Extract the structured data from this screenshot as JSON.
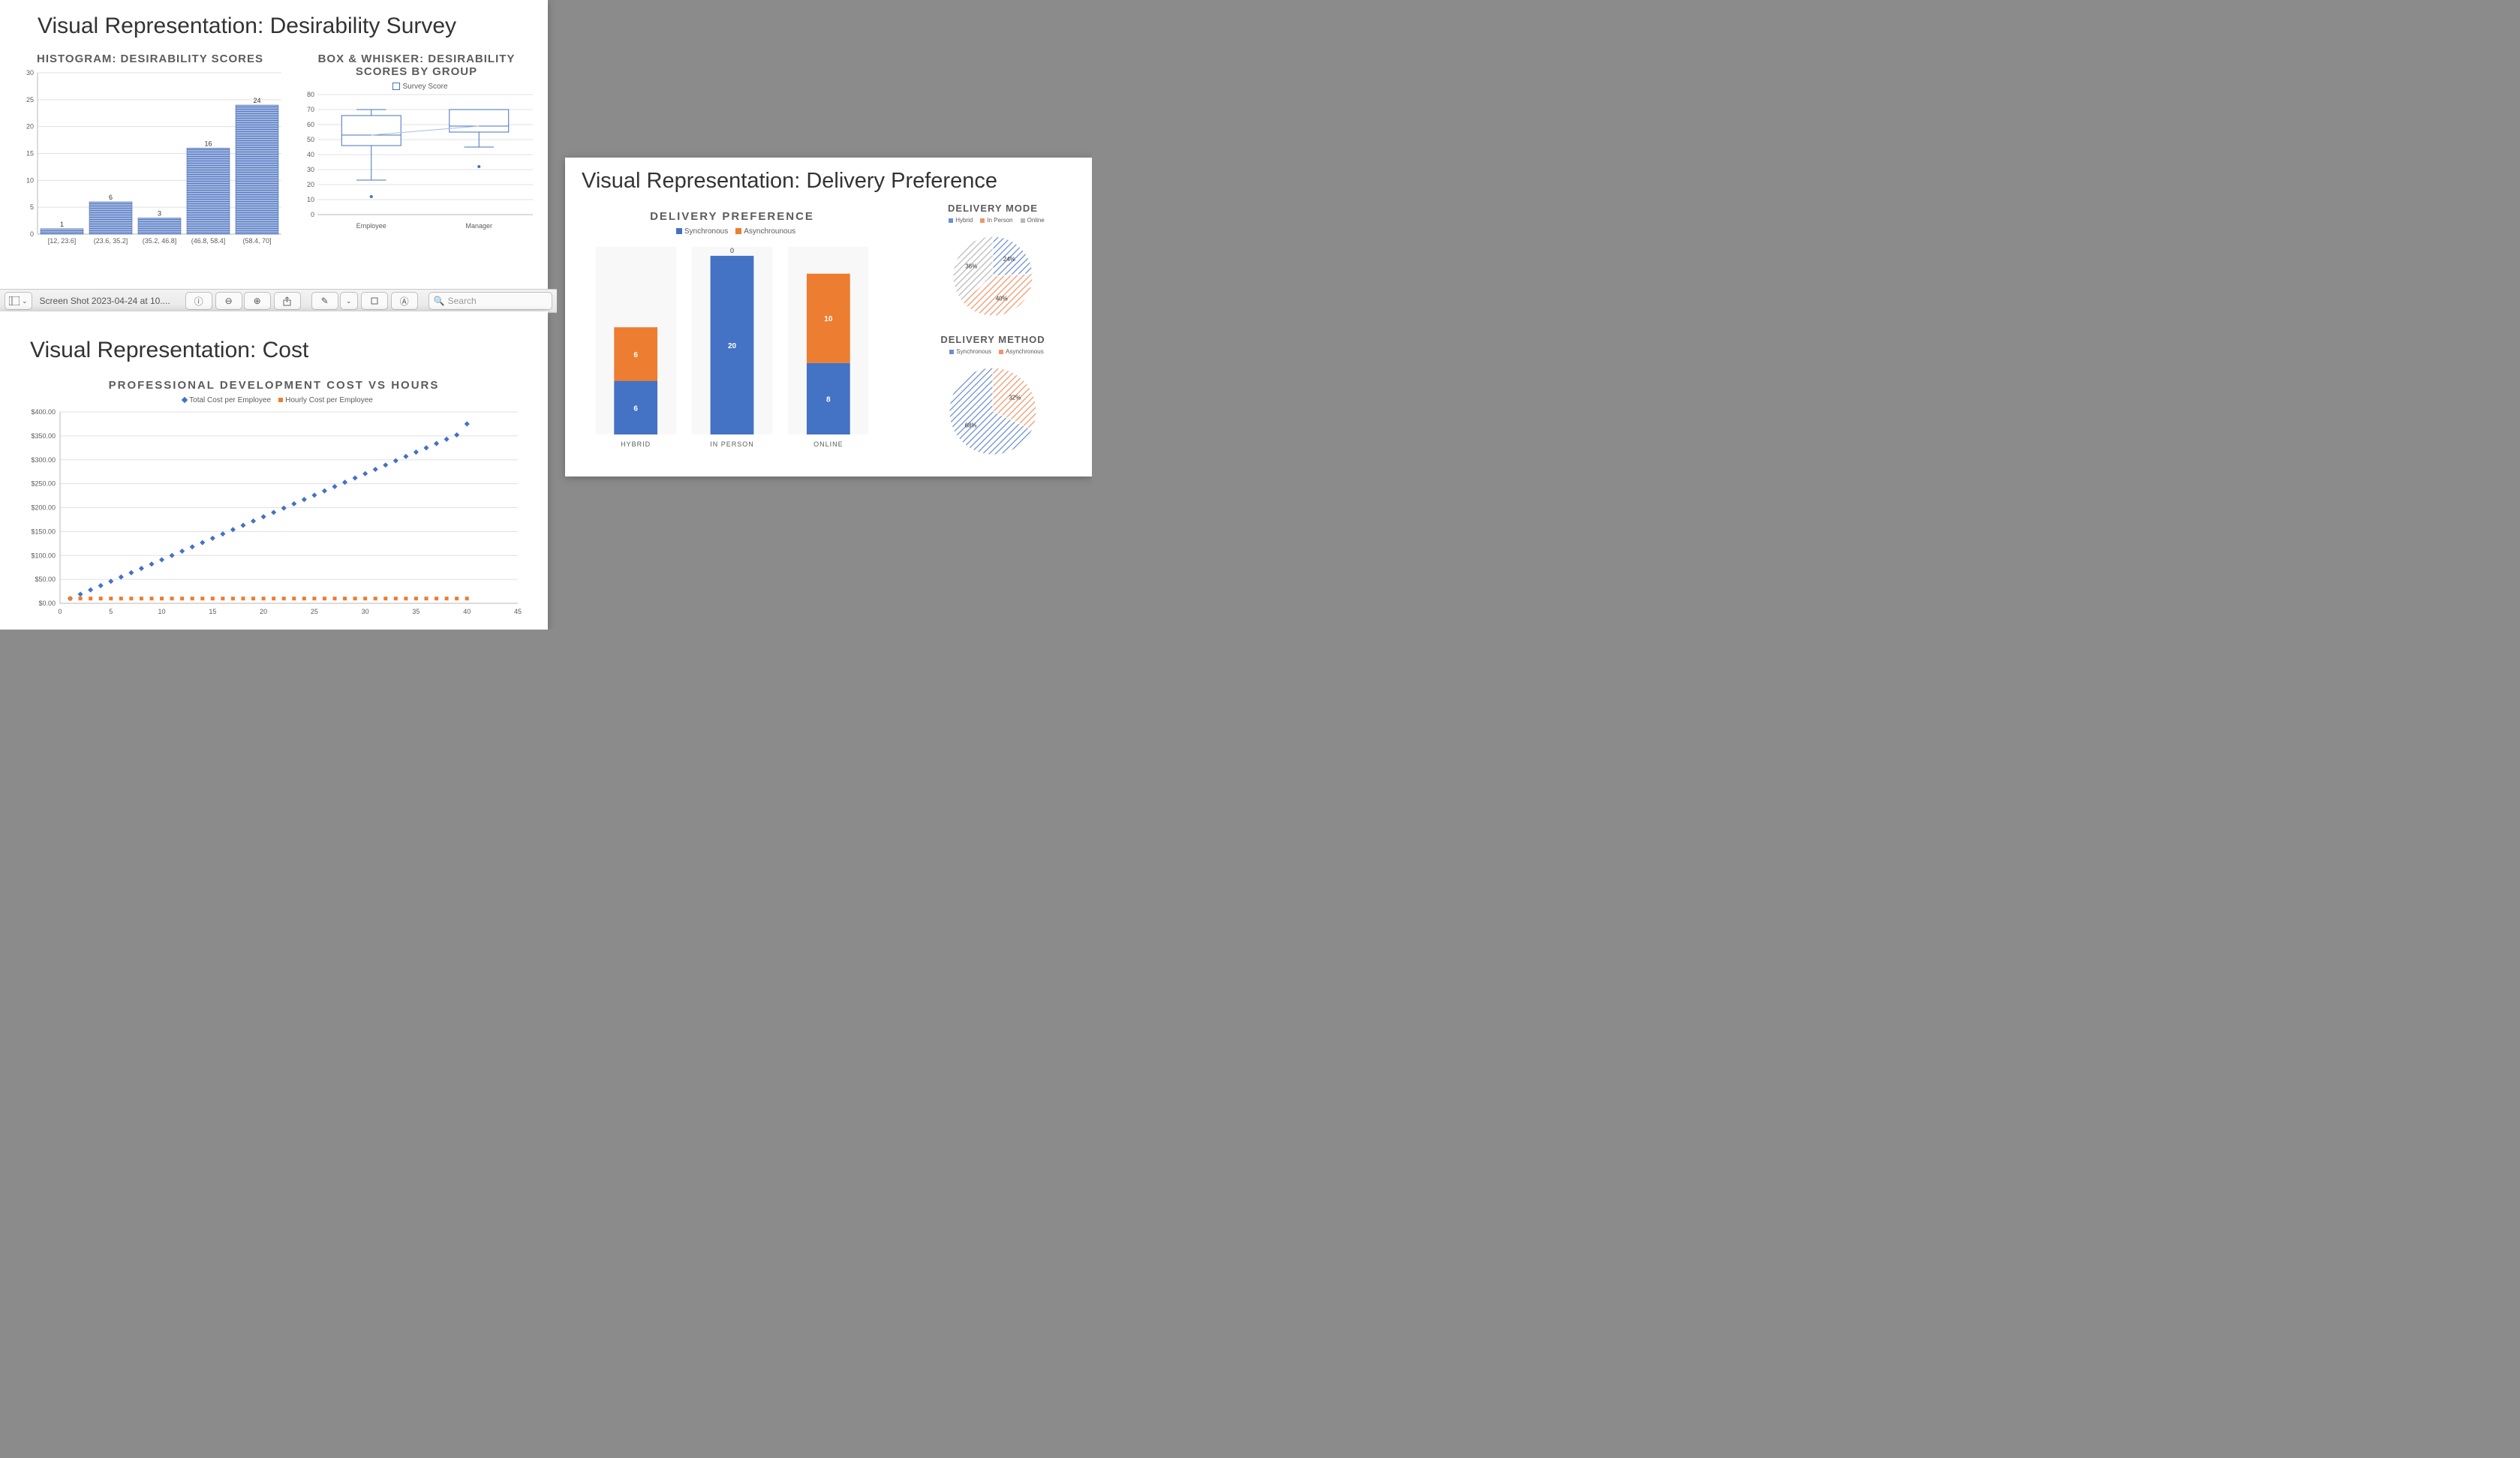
{
  "background_color": "#8b8b8b",
  "slide_bg": "#ffffff",
  "colors": {
    "blue": "#4472c4",
    "orange": "#ed7d31",
    "gray_text": "#5c5c5c",
    "grid": "#e0e0e0",
    "axis": "#b8b8b8",
    "hatch_blue": "#6a8fd0",
    "hatch_orange": "#f0976a",
    "hatch_gray": "#b8b8b8"
  },
  "slide_desirability": {
    "title": "Visual Representation: Desirability Survey",
    "histogram": {
      "type": "histogram",
      "title": "HISTOGRAM: DESIRABILITY SCORES",
      "bins": [
        "[12, 23.6]",
        "(23.6, 35.2]",
        "(35.2, 46.8]",
        "(46.8, 58.4]",
        "(58.4, 70]"
      ],
      "values": [
        1,
        6,
        3,
        16,
        24
      ],
      "bar_color": "#6a8fd0",
      "bar_border": "#3a5a9a",
      "pattern": "horizontal-stripes",
      "ylim": [
        0,
        30
      ],
      "ytick_step": 5,
      "label_fontsize": 9,
      "title_fontsize": 15
    },
    "boxplot": {
      "type": "boxplot",
      "title": "BOX & WHISKER: DESIRABILITY SCORES BY GROUP",
      "legend": "Survey Score",
      "categories": [
        "Employee",
        "Manager"
      ],
      "ylim": [
        0,
        80
      ],
      "ytick_step": 10,
      "boxes": [
        {
          "category": "Employee",
          "min": 23,
          "q1": 46,
          "median": 53,
          "q3": 66,
          "max": 70,
          "outliers": [
            12
          ]
        },
        {
          "category": "Manager",
          "min": 45,
          "q1": 55,
          "median": 59,
          "q3": 70,
          "max": 70,
          "outliers": [
            32
          ]
        }
      ],
      "box_fill": "#ffffff",
      "box_stroke": "#4472c4",
      "connect_medians": true,
      "label_fontsize": 9,
      "title_fontsize": 15
    }
  },
  "slide_cost": {
    "title": "Visual Representation: Cost",
    "scatter": {
      "type": "scatter",
      "title": "PROFESSIONAL DEVELOPMENT COST VS HOURS",
      "legend_items": [
        {
          "label": "Total Cost per Employee",
          "color": "#4472c4",
          "marker": "diamond"
        },
        {
          "label": "Hourly Cost per Employee",
          "color": "#ed7d31",
          "marker": "square"
        }
      ],
      "xlim": [
        0,
        45
      ],
      "xtick_step": 5,
      "ylim": [
        0,
        400
      ],
      "ytick_step": 50,
      "y_prefix": "$",
      "y_decimals": 2,
      "series": [
        {
          "name": "Total Cost per Employee",
          "color": "#4472c4",
          "marker": "diamond",
          "points": [
            [
              1,
              10
            ],
            [
              2,
              19
            ],
            [
              3,
              28
            ],
            [
              4,
              37
            ],
            [
              5,
              46
            ],
            [
              6,
              55
            ],
            [
              7,
              64
            ],
            [
              8,
              73
            ],
            [
              9,
              82
            ],
            [
              10,
              91
            ],
            [
              11,
              100
            ],
            [
              12,
              109
            ],
            [
              13,
              118
            ],
            [
              14,
              127
            ],
            [
              15,
              136
            ],
            [
              16,
              145
            ],
            [
              17,
              154
            ],
            [
              18,
              163
            ],
            [
              19,
              172
            ],
            [
              20,
              181
            ],
            [
              21,
              190
            ],
            [
              22,
              199
            ],
            [
              23,
              208
            ],
            [
              24,
              217
            ],
            [
              25,
              226
            ],
            [
              26,
              235
            ],
            [
              27,
              244
            ],
            [
              28,
              253
            ],
            [
              29,
              262
            ],
            [
              30,
              271
            ],
            [
              31,
              280
            ],
            [
              32,
              289
            ],
            [
              33,
              298
            ],
            [
              34,
              307
            ],
            [
              35,
              316
            ],
            [
              36,
              325
            ],
            [
              37,
              334
            ],
            [
              38,
              343
            ],
            [
              39,
              352
            ],
            [
              40,
              375
            ]
          ]
        },
        {
          "name": "Hourly Cost per Employee",
          "color": "#ed7d31",
          "marker": "square",
          "points": [
            [
              1,
              10
            ],
            [
              2,
              10
            ],
            [
              3,
              10
            ],
            [
              4,
              10
            ],
            [
              5,
              10
            ],
            [
              6,
              10
            ],
            [
              7,
              10
            ],
            [
              8,
              10
            ],
            [
              9,
              10
            ],
            [
              10,
              10
            ],
            [
              11,
              10
            ],
            [
              12,
              10
            ],
            [
              13,
              10
            ],
            [
              14,
              10
            ],
            [
              15,
              10
            ],
            [
              16,
              10
            ],
            [
              17,
              10
            ],
            [
              18,
              10
            ],
            [
              19,
              10
            ],
            [
              20,
              10
            ],
            [
              21,
              10
            ],
            [
              22,
              10
            ],
            [
              23,
              10
            ],
            [
              24,
              10
            ],
            [
              25,
              10
            ],
            [
              26,
              10
            ],
            [
              27,
              10
            ],
            [
              28,
              10
            ],
            [
              29,
              10
            ],
            [
              30,
              10
            ],
            [
              31,
              10
            ],
            [
              32,
              10
            ],
            [
              33,
              10
            ],
            [
              34,
              10
            ],
            [
              35,
              10
            ],
            [
              36,
              10
            ],
            [
              37,
              10
            ],
            [
              38,
              10
            ],
            [
              39,
              10
            ],
            [
              40,
              10
            ]
          ]
        }
      ],
      "label_fontsize": 9,
      "title_fontsize": 14
    }
  },
  "slide_delivery": {
    "title": "Visual Representation: Delivery Preference",
    "stacked_bar": {
      "type": "stacked-bar",
      "title": "DELIVERY PREFERENCE",
      "legend_items": [
        {
          "label": "Synchronous",
          "color": "#4472c4"
        },
        {
          "label": "Asynchrounous",
          "color": "#ed7d31"
        }
      ],
      "categories": [
        "HYBRID",
        "IN PERSON",
        "ONLINE"
      ],
      "series": [
        {
          "name": "Synchronous",
          "color": "#4472c4",
          "values": [
            6,
            20,
            8
          ]
        },
        {
          "name": "Asynchrounous",
          "color": "#ed7d31",
          "values": [
            6,
            0,
            10
          ]
        }
      ],
      "top_labels": [
        "",
        "0",
        ""
      ],
      "ylim": [
        0,
        21
      ],
      "label_fontsize": 10,
      "title_fontsize": 14
    },
    "pie_mode": {
      "type": "pie",
      "title": "DELIVERY MODE",
      "legend_items": [
        {
          "label": "Hybrid",
          "color": "#6a8fd0"
        },
        {
          "label": "In Person",
          "color": "#f0976a"
        },
        {
          "label": "Online",
          "color": "#b8b8b8"
        }
      ],
      "slices": [
        {
          "label": "24%",
          "value": 24,
          "color": "#6a8fd0"
        },
        {
          "label": "40%",
          "value": 40,
          "color": "#f0976a"
        },
        {
          "label": "36%",
          "value": 36,
          "color": "#b8b8b8"
        }
      ],
      "hatch": true,
      "title_fontsize": 14
    },
    "pie_method": {
      "type": "pie",
      "title": "DELIVERY METHOD",
      "legend_items": [
        {
          "label": "Synchronous",
          "color": "#6a8fd0"
        },
        {
          "label": "Asynchronous",
          "color": "#f0976a"
        }
      ],
      "slices": [
        {
          "label": "32%",
          "value": 32,
          "color": "#f0976a"
        },
        {
          "label": "68%",
          "value": 68,
          "color": "#6a8fd0"
        }
      ],
      "hatch": true,
      "title_fontsize": 14
    }
  },
  "toolbar": {
    "filename": "Screen Shot 2023-04-24 at 10....",
    "search_placeholder": "Search"
  }
}
